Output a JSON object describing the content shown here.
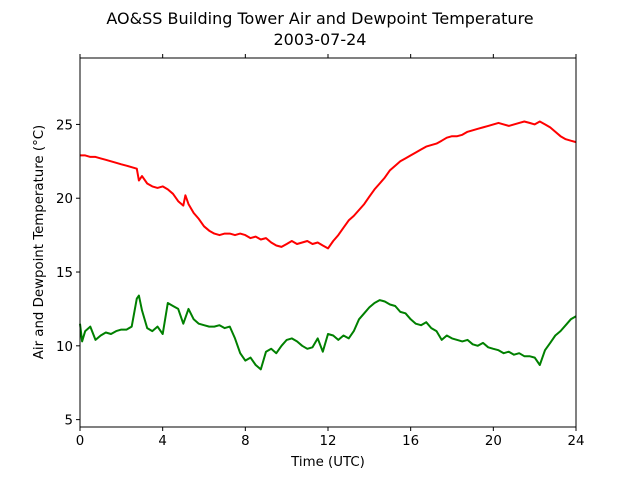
{
  "chart_data": {
    "type": "line",
    "title": "AO&SS Building Tower Air and Dewpoint Temperature",
    "subtitle": "2003-07-24",
    "xlabel": "Time (UTC)",
    "ylabel": "Air and Dewpoint Temperature (°C)",
    "xlim": [
      0,
      24
    ],
    "ylim": [
      4.5,
      29.5
    ],
    "xticks": [
      0,
      4,
      8,
      12,
      16,
      20,
      24
    ],
    "yticks": [
      5,
      10,
      15,
      20,
      25
    ],
    "grid": false,
    "legend": "none",
    "series": [
      {
        "color": "#ff0000",
        "x": [
          0,
          0.25,
          0.5,
          0.75,
          1,
          1.25,
          1.5,
          1.75,
          2,
          2.25,
          2.5,
          2.75,
          2.85,
          3,
          3.25,
          3.5,
          3.75,
          4,
          4.25,
          4.5,
          4.75,
          5,
          5.1,
          5.25,
          5.5,
          5.75,
          6,
          6.25,
          6.5,
          6.75,
          7,
          7.25,
          7.5,
          7.75,
          8,
          8.25,
          8.5,
          8.75,
          9,
          9.25,
          9.5,
          9.75,
          10,
          10.25,
          10.5,
          10.75,
          11,
          11.25,
          11.5,
          11.75,
          12,
          12.25,
          12.5,
          12.75,
          13,
          13.25,
          13.5,
          13.75,
          14,
          14.25,
          14.5,
          14.75,
          15,
          15.25,
          15.5,
          15.75,
          16,
          16.25,
          16.5,
          16.75,
          17,
          17.25,
          17.5,
          17.75,
          18,
          18.25,
          18.5,
          18.75,
          19,
          19.25,
          19.5,
          19.75,
          20,
          20.25,
          20.5,
          20.75,
          21,
          21.25,
          21.5,
          21.75,
          22,
          22.25,
          22.5,
          22.75,
          23,
          23.25,
          23.5,
          23.75,
          24
        ],
        "y": [
          22.9,
          22.9,
          22.8,
          22.8,
          22.7,
          22.6,
          22.5,
          22.4,
          22.3,
          22.2,
          22.1,
          22,
          21.2,
          21.5,
          21,
          20.8,
          20.7,
          20.8,
          20.6,
          20.3,
          19.8,
          19.5,
          20.2,
          19.6,
          19,
          18.6,
          18.1,
          17.8,
          17.6,
          17.5,
          17.6,
          17.6,
          17.5,
          17.6,
          17.5,
          17.3,
          17.4,
          17.2,
          17.3,
          17,
          16.8,
          16.7,
          16.9,
          17.1,
          16.9,
          17,
          17.1,
          16.9,
          17,
          16.8,
          16.6,
          17.1,
          17.5,
          18,
          18.5,
          18.8,
          19.2,
          19.6,
          20.1,
          20.6,
          21,
          21.4,
          21.9,
          22.2,
          22.5,
          22.7,
          22.9,
          23.1,
          23.3,
          23.5,
          23.6,
          23.7,
          23.9,
          24.1,
          24.2,
          24.2,
          24.3,
          24.5,
          24.6,
          24.7,
          24.8,
          24.9,
          25,
          25.1,
          25,
          24.9,
          25,
          25.1,
          25.2,
          25.1,
          25,
          25.2,
          25,
          24.8,
          24.5,
          24.2,
          24,
          23.9,
          23.8
        ]
      },
      {
        "color": "#008000",
        "x": [
          0,
          0.1,
          0.25,
          0.5,
          0.75,
          1,
          1.25,
          1.5,
          1.75,
          2,
          2.25,
          2.5,
          2.75,
          2.85,
          3,
          3.25,
          3.5,
          3.75,
          4,
          4.25,
          4.5,
          4.75,
          5,
          5.25,
          5.5,
          5.75,
          6,
          6.25,
          6.5,
          6.75,
          7,
          7.25,
          7.5,
          7.75,
          8,
          8.25,
          8.5,
          8.75,
          9,
          9.25,
          9.5,
          9.75,
          10,
          10.25,
          10.5,
          10.75,
          11,
          11.25,
          11.5,
          11.75,
          12,
          12.25,
          12.5,
          12.75,
          13,
          13.25,
          13.5,
          13.75,
          14,
          14.25,
          14.5,
          14.75,
          15,
          15.25,
          15.5,
          15.75,
          16,
          16.25,
          16.5,
          16.75,
          17,
          17.25,
          17.5,
          17.75,
          18,
          18.25,
          18.5,
          18.75,
          19,
          19.25,
          19.5,
          19.75,
          20,
          20.25,
          20.5,
          20.75,
          21,
          21.25,
          21.5,
          21.75,
          22,
          22.25,
          22.5,
          22.75,
          23,
          23.25,
          23.5,
          23.75,
          24
        ],
        "y": [
          11.5,
          10.3,
          11,
          11.3,
          10.4,
          10.7,
          10.9,
          10.8,
          11,
          11.1,
          11.1,
          11.3,
          13.2,
          13.4,
          12.4,
          11.2,
          11,
          11.3,
          10.8,
          12.9,
          12.7,
          12.5,
          11.5,
          12.5,
          11.8,
          11.5,
          11.4,
          11.3,
          11.3,
          11.4,
          11.2,
          11.3,
          10.5,
          9.5,
          9,
          9.2,
          8.7,
          8.4,
          9.6,
          9.8,
          9.5,
          10,
          10.4,
          10.5,
          10.3,
          10,
          9.8,
          9.9,
          10.5,
          9.6,
          10.8,
          10.7,
          10.4,
          10.7,
          10.5,
          11,
          11.8,
          12.2,
          12.6,
          12.9,
          13.1,
          13,
          12.8,
          12.7,
          12.3,
          12.2,
          11.8,
          11.5,
          11.4,
          11.6,
          11.2,
          11,
          10.4,
          10.7,
          10.5,
          10.4,
          10.3,
          10.4,
          10.1,
          10,
          10.2,
          9.9,
          9.8,
          9.7,
          9.5,
          9.6,
          9.4,
          9.5,
          9.3,
          9.3,
          9.2,
          8.7,
          9.7,
          10.2,
          10.7,
          11,
          11.4,
          11.8,
          12
        ]
      }
    ]
  }
}
